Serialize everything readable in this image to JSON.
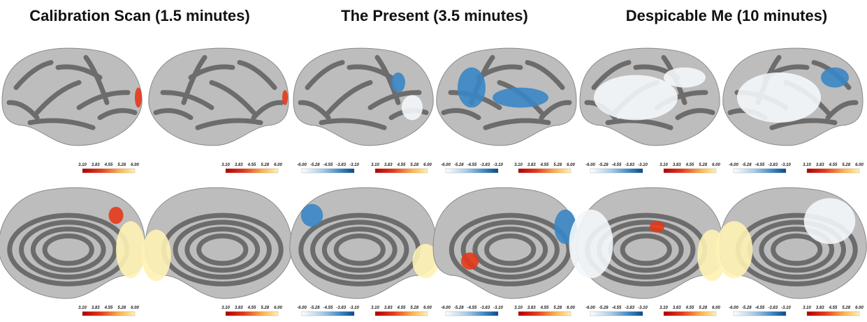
{
  "panels": [
    {
      "title": "Calibration Scan (1.5 minutes)"
    },
    {
      "title": "The Present (3.5 minutes)"
    },
    {
      "title": "Despicable Me (10 minutes)"
    }
  ],
  "colorbars": {
    "negative": [
      "-6.00",
      "-5.28",
      "-4.55",
      "-3.83",
      "-3.10"
    ],
    "positive": [
      "3.10",
      "3.83",
      "4.55",
      "5.28",
      "6.00"
    ]
  }
}
